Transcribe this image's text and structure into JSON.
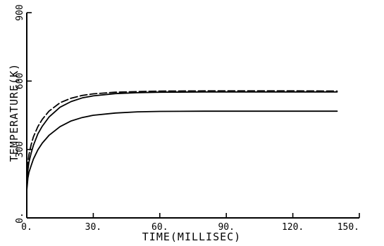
{
  "chart_data": {
    "type": "line",
    "title": "",
    "xlabel": "TIME(MILLISEC)",
    "ylabel": "TEMPERATURE(K)",
    "xlim": [
      0,
      150
    ],
    "ylim": [
      0,
      900
    ],
    "x_ticks": [
      "0.",
      "30.",
      "60.",
      "90.",
      "120.",
      "150."
    ],
    "y_ticks": [
      "0.",
      "300",
      "600",
      "900"
    ],
    "grid": false,
    "legend": "none",
    "line_color": "#000000",
    "series": [
      {
        "style": "solid",
        "x": [
          0,
          0.5,
          1,
          2,
          3,
          5,
          7,
          10,
          15,
          20,
          25,
          30,
          40,
          50,
          60,
          80,
          100,
          120,
          140
        ],
        "y": [
          120,
          175,
          200,
          230,
          258,
          298,
          328,
          362,
          400,
          425,
          440,
          450,
          460,
          465,
          467,
          468,
          468,
          468,
          468
        ]
      },
      {
        "style": "solid",
        "x": [
          0,
          0.5,
          1,
          2,
          3,
          5,
          7,
          10,
          15,
          20,
          25,
          30,
          40,
          50,
          60,
          80,
          100,
          120,
          140
        ],
        "y": [
          150,
          210,
          245,
          285,
          318,
          368,
          402,
          442,
          485,
          510,
          526,
          535,
          545,
          549,
          551,
          552,
          552,
          552,
          552
        ]
      },
      {
        "style": "dashed",
        "x": [
          0,
          0.5,
          1,
          2,
          3,
          5,
          7,
          10,
          15,
          20,
          25,
          30,
          40,
          50,
          60,
          80,
          100,
          120,
          140
        ],
        "y": [
          170,
          240,
          278,
          322,
          355,
          400,
          432,
          468,
          505,
          525,
          537,
          544,
          551,
          554,
          556,
          557,
          557,
          557,
          556
        ]
      }
    ]
  }
}
